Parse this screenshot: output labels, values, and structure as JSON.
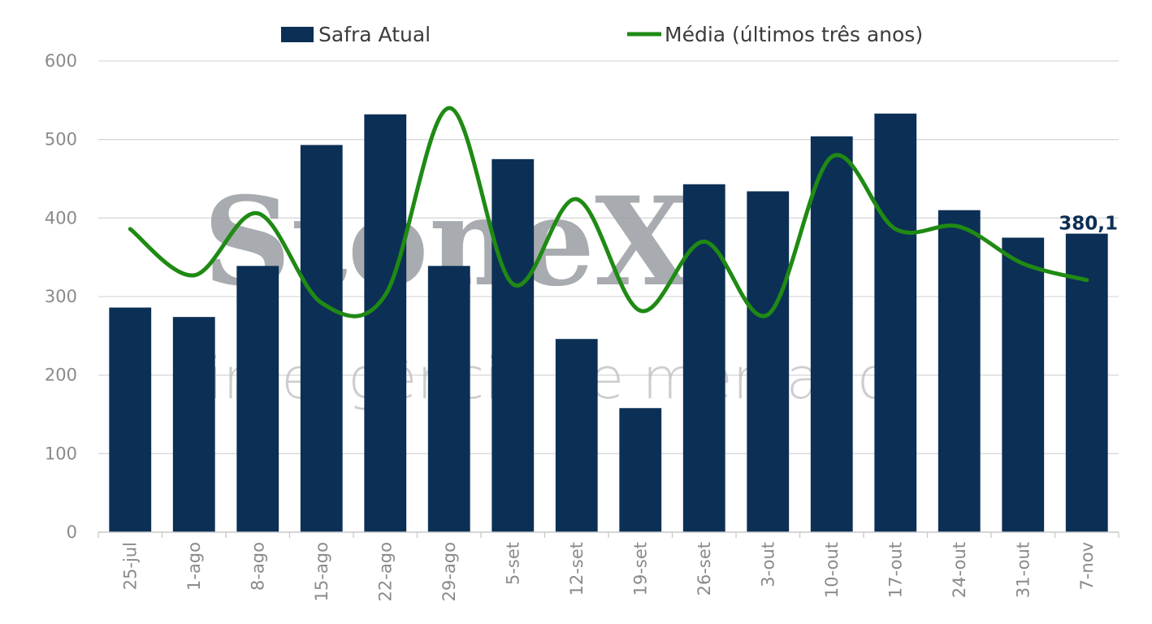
{
  "watermark": {
    "brand": "StoneX",
    "tagline": "inteligência de mercado"
  },
  "chart_data": {
    "type": "bar",
    "categories": [
      "25-jul",
      "1-ago",
      "8-ago",
      "15-ago",
      "22-ago",
      "29-ago",
      "5-set",
      "12-set",
      "19-set",
      "26-set",
      "3-out",
      "10-out",
      "17-out",
      "24-out",
      "31-out",
      "7-nov"
    ],
    "series": [
      {
        "name": "Safra Atual",
        "type": "bar",
        "color": "#0c2f55",
        "values": [
          286,
          274,
          339,
          493,
          532,
          339,
          475,
          246,
          158,
          443,
          434,
          504,
          533,
          410,
          375,
          380.1
        ]
      },
      {
        "name": "Média (últimos três anos)",
        "type": "line",
        "color": "#1f8a14",
        "values": [
          386,
          327,
          406,
          292,
          302,
          540,
          316,
          424,
          282,
          370,
          277,
          478,
          386,
          389,
          342,
          321
        ]
      }
    ],
    "data_labels": [
      {
        "series": "Safra Atual",
        "category": "7-nov",
        "text": "380,1"
      }
    ],
    "ylim": [
      0,
      600
    ],
    "yticks": [
      0,
      100,
      200,
      300,
      400,
      500,
      600
    ],
    "grid": true,
    "legend_position": "top"
  }
}
